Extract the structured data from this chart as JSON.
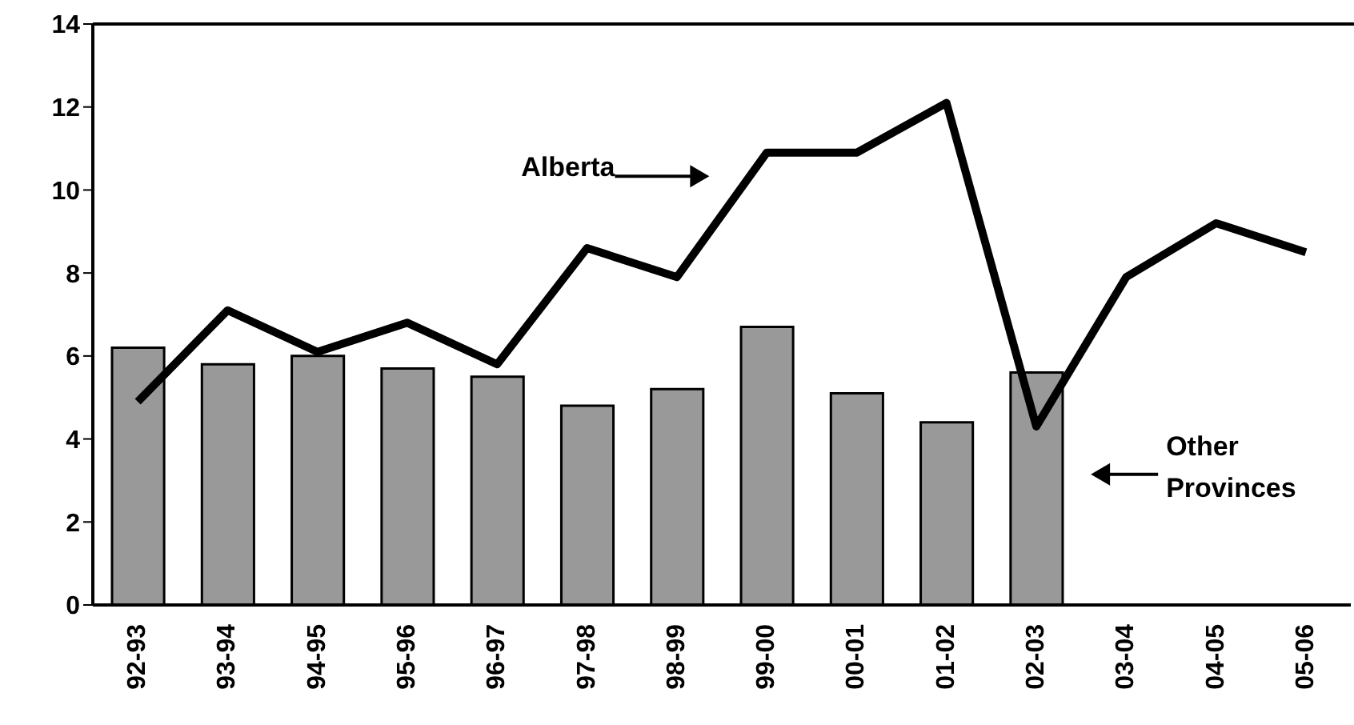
{
  "chart_data": {
    "type": "bar",
    "categories": [
      "92-93",
      "93-94",
      "94-95",
      "95-96",
      "96-97",
      "97-98",
      "98-99",
      "99-00",
      "00-01",
      "01-02",
      "02-03",
      "03-04",
      "04-05",
      "05-06"
    ],
    "series": [
      {
        "name": "Other Provinces",
        "color": "#999999",
        "values": [
          6.2,
          5.8,
          6.0,
          5.7,
          5.5,
          4.8,
          5.2,
          6.7,
          5.1,
          4.4,
          5.6,
          null,
          null,
          null
        ]
      },
      {
        "name": "Alberta",
        "type": "line",
        "color": "#000000",
        "values": [
          4.9,
          7.1,
          6.1,
          6.8,
          5.8,
          8.6,
          7.9,
          10.9,
          10.9,
          12.1,
          4.3,
          7.9,
          9.2,
          8.5
        ]
      }
    ],
    "ylim": [
      0,
      14
    ],
    "yticks": [
      0,
      2,
      4,
      6,
      8,
      10,
      12,
      14
    ],
    "grid": false,
    "legend": "right",
    "marker": "none",
    "line_style": "solid"
  }
}
